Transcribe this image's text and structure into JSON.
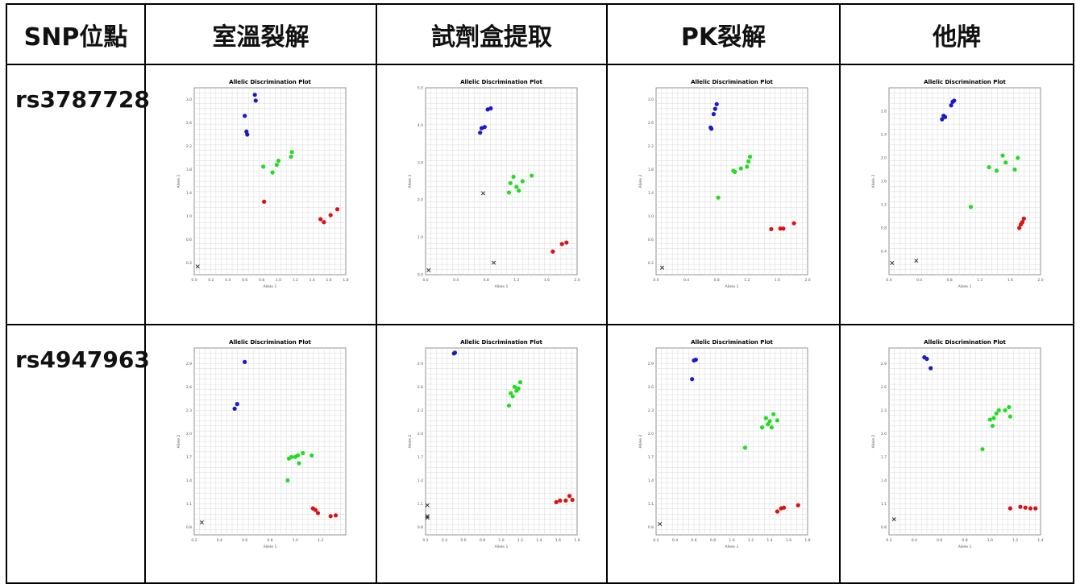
{
  "table": {
    "headers": [
      "SNP位點",
      "室溫裂解",
      "試劑盒提取",
      "PK裂解",
      "他牌"
    ],
    "rows": [
      {
        "label": "rs3787728"
      },
      {
        "label": "rs4947963"
      }
    ]
  },
  "caption": "",
  "colors": {
    "allele1": "#1a1acc",
    "hetero": "#22dd22",
    "allele2": "#dd1111",
    "ntc": "#222222"
  },
  "chart_data": [
    {
      "type": "scatter",
      "snp": "rs3787728",
      "method": "室溫裂解",
      "title": "Allelic Discrimination Plot",
      "xlabel": "Allele 1",
      "ylabel": "Allele 2",
      "xlim": [
        0,
        1.8
      ],
      "ylim": [
        0,
        3.2
      ],
      "xticks": [
        "0.0",
        "0.2",
        "0.4",
        "0.6",
        "0.8",
        "1.0",
        "1.2",
        "1.4",
        "1.6",
        "1.8"
      ],
      "yticks": [
        "0.2",
        "0.6",
        "1.0",
        "1.4",
        "1.8",
        "2.2",
        "2.6",
        "3.0"
      ],
      "series": [
        {
          "group": "allele1",
          "points": [
            [
              0.6,
              2.72
            ],
            [
              0.62,
              2.45
            ],
            [
              0.63,
              2.4
            ],
            [
              0.72,
              3.08
            ],
            [
              0.73,
              2.98
            ]
          ]
        },
        {
          "group": "hetero",
          "points": [
            [
              0.82,
              1.85
            ],
            [
              0.93,
              1.75
            ],
            [
              0.98,
              1.88
            ],
            [
              1.0,
              1.95
            ],
            [
              1.15,
              2.02
            ],
            [
              1.16,
              2.1
            ]
          ]
        },
        {
          "group": "allele2",
          "points": [
            [
              0.83,
              1.25
            ],
            [
              1.5,
              0.95
            ],
            [
              1.54,
              0.9
            ],
            [
              1.62,
              1.02
            ],
            [
              1.7,
              1.12
            ]
          ]
        },
        {
          "group": "ntc",
          "points": [
            [
              0.04,
              0.14
            ]
          ]
        }
      ]
    },
    {
      "type": "scatter",
      "snp": "rs3787728",
      "method": "試劑盒提取",
      "title": "Allelic Discrimination Plot",
      "xlabel": "Allele 1",
      "ylabel": "Allele 2",
      "xlim": [
        0,
        2.0
      ],
      "ylim": [
        0,
        5.0
      ],
      "xticks": [
        "0.0",
        "0.4",
        "0.8",
        "1.2",
        "1.6",
        "2.0"
      ],
      "yticks": [
        "0.0",
        "1.0",
        "2.0",
        "3.0",
        "4.0",
        "5.0"
      ],
      "series": [
        {
          "group": "allele1",
          "points": [
            [
              0.72,
              3.8
            ],
            [
              0.74,
              3.92
            ],
            [
              0.78,
              3.95
            ],
            [
              0.82,
              4.42
            ],
            [
              0.86,
              4.45
            ]
          ]
        },
        {
          "group": "hetero",
          "points": [
            [
              1.1,
              2.2
            ],
            [
              1.12,
              2.45
            ],
            [
              1.16,
              2.62
            ],
            [
              1.2,
              2.35
            ],
            [
              1.23,
              2.25
            ],
            [
              1.28,
              2.5
            ],
            [
              1.4,
              2.65
            ]
          ]
        },
        {
          "group": "allele2",
          "points": [
            [
              1.68,
              0.62
            ],
            [
              1.8,
              0.82
            ],
            [
              1.86,
              0.86
            ]
          ]
        },
        {
          "group": "ntc",
          "points": [
            [
              0.04,
              0.12
            ],
            [
              0.76,
              2.18
            ],
            [
              0.9,
              0.32
            ]
          ]
        }
      ]
    },
    {
      "type": "scatter",
      "snp": "rs3787728",
      "method": "PK裂解",
      "title": "Allelic Discrimination Plot",
      "xlabel": "Allele 1",
      "ylabel": "Allele 2",
      "xlim": [
        0,
        2.0
      ],
      "ylim": [
        0,
        3.2
      ],
      "xticks": [
        "0.0",
        "0.4",
        "0.8",
        "1.2",
        "1.6",
        "2.0"
      ],
      "yticks": [
        "0.2",
        "0.6",
        "1.0",
        "1.4",
        "1.8",
        "2.2",
        "2.6",
        "3.0"
      ],
      "series": [
        {
          "group": "allele1",
          "points": [
            [
              0.72,
              2.52
            ],
            [
              0.73,
              2.5
            ],
            [
              0.76,
              2.75
            ],
            [
              0.78,
              2.84
            ],
            [
              0.8,
              2.92
            ]
          ]
        },
        {
          "group": "hetero",
          "points": [
            [
              0.82,
              1.32
            ],
            [
              1.02,
              1.78
            ],
            [
              1.04,
              1.76
            ],
            [
              1.12,
              1.82
            ],
            [
              1.2,
              1.85
            ],
            [
              1.22,
              1.94
            ],
            [
              1.24,
              2.02
            ]
          ]
        },
        {
          "group": "allele2",
          "points": [
            [
              1.52,
              0.78
            ],
            [
              1.64,
              0.79
            ],
            [
              1.68,
              0.79
            ],
            [
              1.82,
              0.88
            ]
          ]
        },
        {
          "group": "ntc",
          "points": [
            [
              0.08,
              0.12
            ]
          ]
        }
      ]
    },
    {
      "type": "scatter",
      "snp": "rs3787728",
      "method": "他牌",
      "title": "Allelic Discrimination Plot",
      "xlabel": "Allele 1",
      "ylabel": "Allele 2",
      "xlim": [
        0,
        2.0
      ],
      "ylim": [
        0,
        3.2
      ],
      "xticks": [
        "0.0",
        "0.4",
        "0.8",
        "1.2",
        "1.6",
        "2.0"
      ],
      "yticks": [
        "0.4",
        "0.8",
        "1.2",
        "1.6",
        "2.0",
        "2.4",
        "2.8"
      ],
      "series": [
        {
          "group": "allele1",
          "points": [
            [
              0.7,
              2.66
            ],
            [
              0.72,
              2.72
            ],
            [
              0.74,
              2.7
            ],
            [
              0.82,
              2.9
            ],
            [
              0.84,
              2.96
            ],
            [
              0.86,
              2.98
            ]
          ]
        },
        {
          "group": "hetero",
          "points": [
            [
              1.08,
              1.16
            ],
            [
              1.32,
              1.84
            ],
            [
              1.42,
              1.78
            ],
            [
              1.5,
              2.04
            ],
            [
              1.54,
              1.92
            ],
            [
              1.66,
              1.8
            ],
            [
              1.7,
              2.0
            ]
          ]
        },
        {
          "group": "allele2",
          "points": [
            [
              1.72,
              0.8
            ],
            [
              1.74,
              0.86
            ],
            [
              1.76,
              0.9
            ],
            [
              1.78,
              0.96
            ]
          ]
        },
        {
          "group": "ntc",
          "points": [
            [
              0.04,
              0.2
            ],
            [
              0.36,
              0.24
            ]
          ]
        }
      ]
    },
    {
      "type": "scatter",
      "snp": "rs4947963",
      "method": "室溫裂解",
      "title": "Allelic Discrimination Plot",
      "xlabel": "Allele 1",
      "ylabel": "Allele 2",
      "xlim": [
        0.2,
        1.4
      ],
      "ylim": [
        0.7,
        3.1
      ],
      "xticks": [
        "0.2",
        "0.4",
        "0.6",
        "0.8",
        "1.0",
        "1.2"
      ],
      "yticks": [
        "0.8",
        "1.1",
        "1.4",
        "1.7",
        "2.0",
        "2.3",
        "2.6",
        "2.9"
      ],
      "series": [
        {
          "group": "allele1",
          "points": [
            [
              0.52,
              2.32
            ],
            [
              0.54,
              2.38
            ],
            [
              0.6,
              2.92
            ]
          ]
        },
        {
          "group": "hetero",
          "points": [
            [
              0.94,
              1.4
            ],
            [
              0.95,
              1.68
            ],
            [
              0.97,
              1.7
            ],
            [
              1.0,
              1.7
            ],
            [
              1.02,
              1.72
            ],
            [
              1.03,
              1.62
            ],
            [
              1.06,
              1.75
            ],
            [
              1.13,
              1.72
            ]
          ]
        },
        {
          "group": "allele2",
          "points": [
            [
              1.14,
              1.04
            ],
            [
              1.16,
              1.02
            ],
            [
              1.18,
              0.98
            ],
            [
              1.28,
              0.94
            ],
            [
              1.32,
              0.95
            ]
          ]
        },
        {
          "group": "ntc",
          "points": [
            [
              0.26,
              0.86
            ]
          ]
        }
      ]
    },
    {
      "type": "scatter",
      "snp": "rs4947963",
      "method": "試劑盒提取",
      "title": "Allelic Discrimination Plot",
      "xlabel": "Allele 1",
      "ylabel": "Allele 2",
      "xlim": [
        0.2,
        1.8
      ],
      "ylim": [
        0.7,
        3.1
      ],
      "xticks": [
        "0.2",
        "0.4",
        "0.6",
        "0.8",
        "1.0",
        "1.2",
        "1.4",
        "1.6",
        "1.8"
      ],
      "yticks": [
        "0.8",
        "1.1",
        "1.4",
        "1.7",
        "2.0",
        "2.3",
        "2.6",
        "2.9"
      ],
      "series": [
        {
          "group": "allele1",
          "points": [
            [
              0.5,
              3.03
            ],
            [
              0.51,
              3.04
            ]
          ]
        },
        {
          "group": "hetero",
          "points": [
            [
              1.08,
              2.36
            ],
            [
              1.1,
              2.52
            ],
            [
              1.12,
              2.48
            ],
            [
              1.14,
              2.6
            ],
            [
              1.16,
              2.55
            ],
            [
              1.18,
              2.58
            ],
            [
              1.2,
              2.66
            ]
          ]
        },
        {
          "group": "allele2",
          "points": [
            [
              1.58,
              1.12
            ],
            [
              1.62,
              1.14
            ],
            [
              1.68,
              1.14
            ],
            [
              1.72,
              1.2
            ],
            [
              1.75,
              1.15
            ]
          ]
        },
        {
          "group": "ntc",
          "points": [
            [
              0.22,
              1.08
            ],
            [
              0.22,
              0.94
            ],
            [
              0.22,
              0.92
            ]
          ]
        }
      ]
    },
    {
      "type": "scatter",
      "snp": "rs4947963",
      "method": "PK裂解",
      "title": "Allelic Discrimination Plot",
      "xlabel": "Allele 1",
      "ylabel": "Allele 2",
      "xlim": [
        0.2,
        1.8
      ],
      "ylim": [
        0.7,
        3.1
      ],
      "xticks": [
        "0.2",
        "0.4",
        "0.6",
        "0.8",
        "1.0",
        "1.2",
        "1.4",
        "1.6",
        "1.8"
      ],
      "yticks": [
        "0.8",
        "1.1",
        "1.4",
        "1.7",
        "2.0",
        "2.3",
        "2.6",
        "2.9"
      ],
      "series": [
        {
          "group": "allele1",
          "points": [
            [
              0.58,
              2.7
            ],
            [
              0.6,
              2.94
            ],
            [
              0.62,
              2.95
            ]
          ]
        },
        {
          "group": "hetero",
          "points": [
            [
              1.14,
              1.82
            ],
            [
              1.32,
              2.08
            ],
            [
              1.36,
              2.2
            ],
            [
              1.38,
              2.12
            ],
            [
              1.4,
              2.16
            ],
            [
              1.42,
              2.08
            ],
            [
              1.44,
              2.25
            ],
            [
              1.48,
              2.17
            ]
          ]
        },
        {
          "group": "allele2",
          "points": [
            [
              1.48,
              1.0
            ],
            [
              1.52,
              1.04
            ],
            [
              1.55,
              1.05
            ],
            [
              1.7,
              1.08
            ]
          ]
        },
        {
          "group": "ntc",
          "points": [
            [
              0.24,
              0.84
            ]
          ]
        }
      ]
    },
    {
      "type": "scatter",
      "snp": "rs4947963",
      "method": "他牌",
      "title": "Allelic Discrimination Plot",
      "xlabel": "Allele 1",
      "ylabel": "Allele 2",
      "xlim": [
        0.2,
        1.4
      ],
      "ylim": [
        0.7,
        3.1
      ],
      "xticks": [
        "0.2",
        "0.4",
        "0.6",
        "0.8",
        "1.0",
        "1.2",
        "1.4"
      ],
      "yticks": [
        "0.8",
        "1.1",
        "1.4",
        "1.7",
        "2.0",
        "2.3",
        "2.6",
        "2.9"
      ],
      "series": [
        {
          "group": "allele1",
          "points": [
            [
              0.48,
              2.98
            ],
            [
              0.5,
              2.96
            ],
            [
              0.53,
              2.84
            ]
          ]
        },
        {
          "group": "hetero",
          "points": [
            [
              0.94,
              1.8
            ],
            [
              1.0,
              2.18
            ],
            [
              1.02,
              2.1
            ],
            [
              1.03,
              2.2
            ],
            [
              1.05,
              2.26
            ],
            [
              1.07,
              2.3
            ],
            [
              1.12,
              2.3
            ],
            [
              1.15,
              2.34
            ],
            [
              1.16,
              2.22
            ]
          ]
        },
        {
          "group": "allele2",
          "points": [
            [
              1.16,
              1.04
            ],
            [
              1.24,
              1.06
            ],
            [
              1.28,
              1.05
            ],
            [
              1.32,
              1.04
            ],
            [
              1.36,
              1.04
            ]
          ]
        },
        {
          "group": "ntc",
          "points": [
            [
              0.24,
              0.9
            ]
          ]
        }
      ]
    }
  ]
}
